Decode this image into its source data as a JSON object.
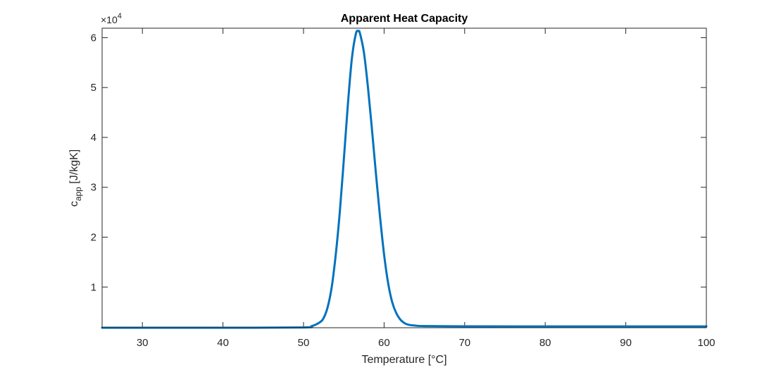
{
  "chart_data": {
    "type": "line",
    "title": "Apparent Heat Capacity",
    "xlabel": "Temperature [°C]",
    "ylabel_main": "c",
    "ylabel_sub": "app",
    "ylabel_units": " [J/kgK]",
    "y_multiplier_base": "×10",
    "y_multiplier_exp": "4",
    "xlim": [
      25,
      100
    ],
    "ylim": [
      1840,
      61900
    ],
    "x_ticks": [
      30,
      40,
      50,
      60,
      70,
      80,
      90,
      100
    ],
    "y_ticks": [
      10000,
      20000,
      30000,
      40000,
      50000,
      60000
    ],
    "y_tick_labels": [
      "1",
      "2",
      "3",
      "4",
      "5",
      "6"
    ],
    "grid": false,
    "box": true,
    "line_color": "#0072BD",
    "series": [
      {
        "x": [
          25,
          30,
          40,
          50,
          51,
          52,
          52.5,
          53,
          53.5,
          54,
          54.5,
          55,
          55.5,
          56,
          56.5,
          56.8,
          57,
          57.5,
          58,
          58.5,
          59,
          59.5,
          60,
          60.5,
          61,
          61.5,
          62,
          62.5,
          63,
          64,
          65,
          70,
          80,
          90,
          100
        ],
        "y": [
          1840,
          1840,
          1840,
          1900,
          2150,
          2900,
          3800,
          6000,
          10000,
          16500,
          25000,
          35500,
          46500,
          55800,
          60800,
          61300,
          60900,
          57000,
          50000,
          41500,
          32500,
          24000,
          16500,
          10800,
          7000,
          4800,
          3500,
          2800,
          2450,
          2250,
          2180,
          2120,
          2110,
          2100,
          2100
        ]
      }
    ]
  }
}
